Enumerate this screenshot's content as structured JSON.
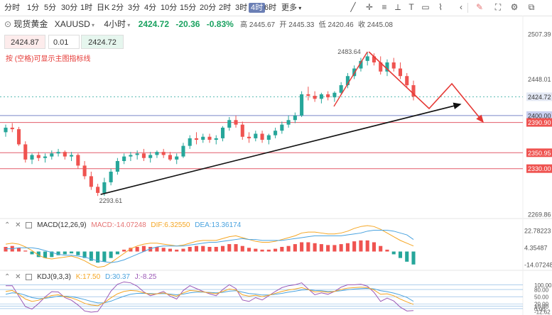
{
  "toolbar": {
    "timeframes": [
      "分时",
      "1分",
      "5分",
      "30分",
      "1时",
      "日K",
      "2分",
      "3分",
      "4分",
      "10分",
      "15分",
      "20分",
      "2时",
      "3时",
      "4时",
      "6时",
      "更多"
    ],
    "active_timeframe": "4时",
    "icons": [
      "trendline-icon",
      "crosshair-icon",
      "lines-icon",
      "measure-icon",
      "text-icon",
      "shapes-icon",
      "pattern-icon",
      "collapse-icon",
      "edit-icon",
      "fullscreen-icon",
      "settings-icon",
      "screenshot-icon"
    ]
  },
  "symbol": {
    "name": "现货黄金",
    "code": "XAUUSD",
    "timeframe": "4小时",
    "price": "2424.72",
    "change": "-20.36",
    "change_pct": "-0.83%",
    "high": "高 2445.67",
    "open": "开 2445.33",
    "low": "低 2420.46",
    "close": "收 2445.08"
  },
  "order": {
    "bid": "2424.87",
    "lot": "0.01",
    "ask": "2424.72"
  },
  "hint": "按 (空格)可显示主图指标线",
  "chart_data": {
    "type": "candlestick",
    "price_axis_ticks": [
      "2507.39",
      "2448.01",
      "2424.72",
      "2400.00",
      "2390.90",
      "2350.95",
      "2330.00",
      "2269.86"
    ],
    "annotations": {
      "high_label": "2483.64",
      "low_label": "2293.61"
    },
    "ohlc": [
      [
        2378,
        2388,
        2372,
        2384
      ],
      [
        2384,
        2390,
        2378,
        2382
      ],
      [
        2382,
        2385,
        2360,
        2362
      ],
      [
        2362,
        2366,
        2338,
        2342
      ],
      [
        2342,
        2350,
        2336,
        2348
      ],
      [
        2348,
        2352,
        2340,
        2344
      ],
      [
        2344,
        2350,
        2338,
        2346
      ],
      [
        2346,
        2354,
        2342,
        2350
      ],
      [
        2350,
        2356,
        2346,
        2352
      ],
      [
        2352,
        2354,
        2342,
        2346
      ],
      [
        2346,
        2352,
        2340,
        2348
      ],
      [
        2348,
        2350,
        2330,
        2334
      ],
      [
        2334,
        2340,
        2316,
        2320
      ],
      [
        2320,
        2326,
        2302,
        2306
      ],
      [
        2306,
        2310,
        2294,
        2298
      ],
      [
        2298,
        2318,
        2294,
        2312
      ],
      [
        2312,
        2330,
        2308,
        2326
      ],
      [
        2326,
        2344,
        2322,
        2340
      ],
      [
        2340,
        2350,
        2336,
        2346
      ],
      [
        2346,
        2352,
        2340,
        2348
      ],
      [
        2348,
        2354,
        2342,
        2350
      ],
      [
        2350,
        2356,
        2340,
        2344
      ],
      [
        2344,
        2352,
        2338,
        2348
      ],
      [
        2348,
        2354,
        2344,
        2352
      ],
      [
        2352,
        2356,
        2344,
        2348
      ],
      [
        2348,
        2352,
        2340,
        2342
      ],
      [
        2342,
        2350,
        2336,
        2346
      ],
      [
        2346,
        2364,
        2344,
        2360
      ],
      [
        2360,
        2374,
        2356,
        2370
      ],
      [
        2370,
        2378,
        2362,
        2368
      ],
      [
        2368,
        2376,
        2364,
        2372
      ],
      [
        2372,
        2376,
        2364,
        2368
      ],
      [
        2368,
        2374,
        2362,
        2370
      ],
      [
        2370,
        2386,
        2366,
        2384
      ],
      [
        2384,
        2398,
        2380,
        2394
      ],
      [
        2394,
        2400,
        2384,
        2388
      ],
      [
        2388,
        2392,
        2368,
        2372
      ],
      [
        2372,
        2378,
        2364,
        2370
      ],
      [
        2370,
        2380,
        2366,
        2376
      ],
      [
        2376,
        2380,
        2364,
        2368
      ],
      [
        2368,
        2376,
        2362,
        2374
      ],
      [
        2374,
        2384,
        2370,
        2380
      ],
      [
        2380,
        2392,
        2376,
        2388
      ],
      [
        2388,
        2400,
        2384,
        2394
      ],
      [
        2394,
        2404,
        2390,
        2400
      ],
      [
        2400,
        2432,
        2398,
        2428
      ],
      [
        2428,
        2438,
        2420,
        2426
      ],
      [
        2426,
        2432,
        2418,
        2422
      ],
      [
        2422,
        2430,
        2416,
        2428
      ],
      [
        2428,
        2432,
        2420,
        2424
      ],
      [
        2424,
        2432,
        2418,
        2430
      ],
      [
        2430,
        2444,
        2428,
        2440
      ],
      [
        2440,
        2456,
        2436,
        2452
      ],
      [
        2452,
        2466,
        2448,
        2462
      ],
      [
        2462,
        2476,
        2458,
        2472
      ],
      [
        2472,
        2484,
        2466,
        2478
      ],
      [
        2478,
        2482,
        2466,
        2470
      ],
      [
        2470,
        2478,
        2454,
        2458
      ],
      [
        2458,
        2474,
        2452,
        2470
      ],
      [
        2470,
        2476,
        2458,
        2462
      ],
      [
        2462,
        2470,
        2448,
        2452
      ],
      [
        2452,
        2456,
        2436,
        2440
      ],
      [
        2440,
        2446,
        2420,
        2425
      ]
    ],
    "macd": {
      "label": "MACD(12,26,9)",
      "macd_text": "MACD:-14.07248",
      "dif_text": "DIF:6.32550",
      "dea_text": "DEA:13.36174",
      "ticks": [
        "22.78223",
        "4.35487",
        "-14.07248"
      ],
      "hist": [
        5,
        6,
        4,
        1,
        -3,
        -6,
        -7,
        -6,
        -4,
        -3,
        -2,
        -4,
        -7,
        -10,
        -12,
        -11,
        -7,
        -3,
        2,
        4,
        5,
        6,
        5,
        5,
        4,
        3,
        2,
        3,
        5,
        6,
        6,
        5,
        5,
        6,
        8,
        8,
        6,
        4,
        3,
        2,
        2,
        3,
        5,
        6,
        8,
        10,
        10,
        9,
        8,
        7,
        7,
        8,
        9,
        11,
        12,
        12,
        10,
        6,
        2,
        -3,
        -7,
        -11,
        -14
      ],
      "dif": [
        8,
        9,
        8,
        5,
        1,
        -4,
        -7,
        -8,
        -7,
        -6,
        -5,
        -7,
        -10,
        -14,
        -17,
        -16,
        -12,
        -7,
        -2,
        3,
        6,
        8,
        9,
        9,
        8,
        7,
        6,
        7,
        9,
        11,
        12,
        12,
        12,
        14,
        16,
        17,
        15,
        13,
        11,
        10,
        10,
        11,
        13,
        15,
        17,
        20,
        21,
        21,
        20,
        19,
        19,
        20,
        22,
        25,
        27,
        28,
        27,
        24,
        20,
        16,
        12,
        9,
        6
      ],
      "dea": [
        3,
        3,
        4,
        4,
        4,
        3,
        1,
        -1,
        -3,
        -4,
        -4,
        -5,
        -6,
        -8,
        -10,
        -11,
        -12,
        -11,
        -9,
        -6,
        -3,
        0,
        3,
        5,
        6,
        6,
        6,
        6,
        7,
        8,
        9,
        10,
        10,
        11,
        12,
        13,
        14,
        13,
        13,
        12,
        12,
        12,
        12,
        13,
        14,
        15,
        16,
        17,
        17,
        17,
        17,
        17,
        18,
        19,
        20,
        22,
        23,
        23,
        23,
        22,
        20,
        18,
        13
      ]
    },
    "kdj": {
      "label": "KDJ(9,3,3)",
      "k_text": "K:17.50",
      "d_text": "D:30.37",
      "j_text": "J:-8.25",
      "ticks": [
        "100.00",
        "80.00",
        "50.00",
        "20.00",
        "10.00",
        "0.00",
        "-12.62"
      ],
      "k": [
        72,
        76,
        60,
        40,
        30,
        35,
        45,
        55,
        58,
        50,
        45,
        35,
        22,
        15,
        12,
        25,
        45,
        62,
        72,
        76,
        74,
        66,
        60,
        62,
        66,
        58,
        52,
        66,
        76,
        74,
        70,
        66,
        62,
        72,
        82,
        78,
        58,
        52,
        56,
        50,
        56,
        64,
        72,
        78,
        82,
        88,
        80,
        70,
        72,
        68,
        72,
        80,
        86,
        88,
        90,
        88,
        78,
        60,
        62,
        54,
        40,
        28,
        17.5
      ],
      "d": [
        60,
        66,
        64,
        56,
        46,
        42,
        43,
        47,
        52,
        52,
        50,
        45,
        38,
        30,
        24,
        24,
        31,
        42,
        52,
        60,
        64,
        64,
        63,
        62,
        63,
        61,
        58,
        61,
        66,
        69,
        69,
        68,
        66,
        68,
        73,
        75,
        69,
        63,
        61,
        57,
        57,
        60,
        64,
        69,
        73,
        78,
        79,
        76,
        75,
        72,
        72,
        75,
        79,
        82,
        84,
        85,
        83,
        75,
        71,
        65,
        57,
        47,
        30.37
      ],
      "j": [
        96,
        96,
        52,
        8,
        -2,
        21,
        49,
        71,
        70,
        46,
        35,
        15,
        -10,
        -15,
        -12,
        27,
        73,
        102,
        112,
        108,
        94,
        70,
        54,
        62,
        72,
        52,
        40,
        76,
        96,
        84,
        72,
        62,
        54,
        80,
        100,
        84,
        36,
        30,
        46,
        36,
        54,
        72,
        88,
        96,
        100,
        108,
        82,
        58,
        66,
        60,
        72,
        90,
        100,
        100,
        102,
        94,
        68,
        30,
        44,
        32,
        6,
        -10,
        -8.25
      ]
    }
  },
  "colors": {
    "up": "#26a69a",
    "down": "#ef5350",
    "bg": "#ffffff",
    "trendline": "#111111",
    "projection": "#e53935",
    "price_tag": "#e3e8f4",
    "price_tag_red": "#ef5350",
    "k": "#f5a623",
    "d": "#4aa3df",
    "j": "#9b59b6",
    "dif": "#f5a623",
    "dea": "#4aa3df"
  }
}
